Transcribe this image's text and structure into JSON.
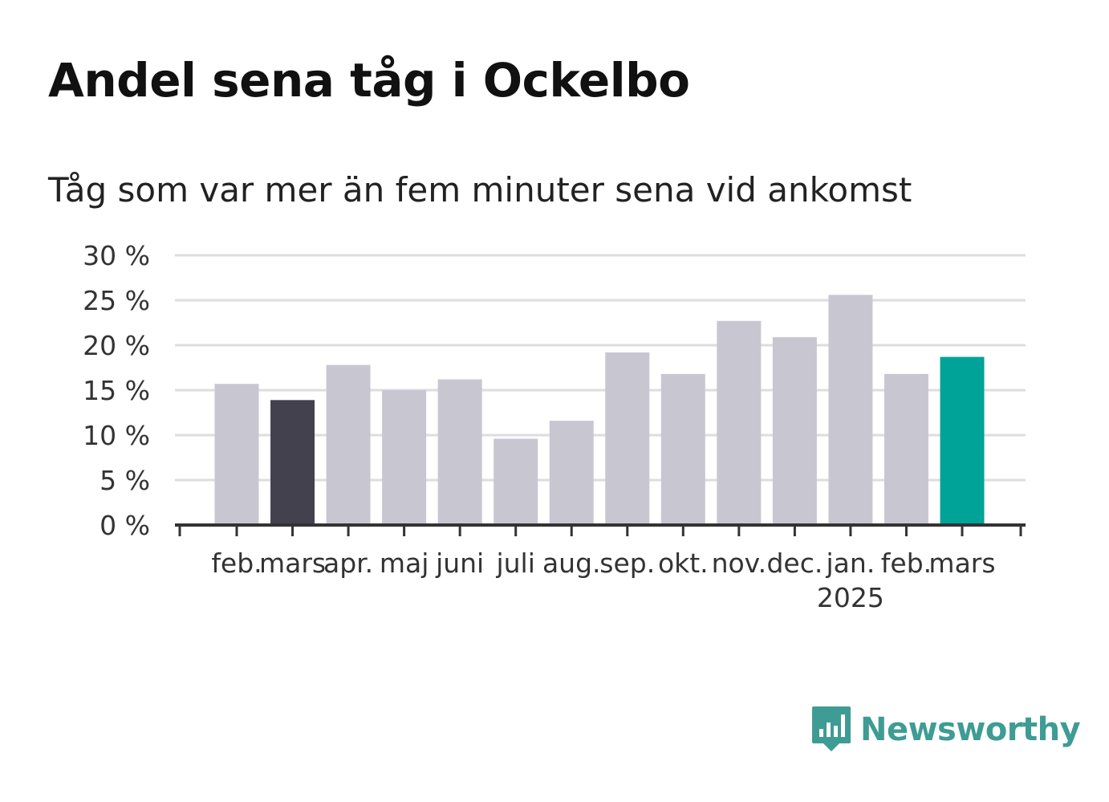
{
  "title": "Andel sena tåg i Ockelbo",
  "subtitle": "Tåg som var mer än fem minuter sena vid ankomst",
  "brand": {
    "name": "Newsworthy",
    "color": "#3e9c94",
    "icon": "newsworthy-logo-icon"
  },
  "chart_data": {
    "type": "bar",
    "title": "Andel sena tåg i Ockelbo",
    "subtitle": "Tåg som var mer än fem minuter sena vid ankomst",
    "xlabel": "",
    "ylabel": "",
    "categories": [
      "feb.",
      "mars",
      "apr.",
      "maj",
      "juni",
      "juli",
      "aug.",
      "sep.",
      "okt.",
      "nov.",
      "dec.",
      "jan.",
      "feb.",
      "mars"
    ],
    "year_label": {
      "text": "2025",
      "under_category": "jan."
    },
    "values": [
      15.7,
      13.9,
      17.8,
      15.0,
      16.2,
      9.6,
      11.6,
      19.2,
      16.8,
      22.7,
      20.9,
      25.6,
      16.8,
      18.7
    ],
    "ylim": [
      0,
      30
    ],
    "yticks": [
      0,
      5,
      10,
      15,
      20,
      25,
      30
    ],
    "ytick_labels": [
      "0 %",
      "5 %",
      "10 %",
      "15 %",
      "20 %",
      "25 %",
      "30 %"
    ],
    "grid": true,
    "colors": {
      "default": "#c8c7d1",
      "reference": "#43414d",
      "current": "#00a398",
      "grid": "#dddddd",
      "axis": "#333333"
    },
    "highlight": {
      "reference_index": 1,
      "current_index": 13
    }
  }
}
